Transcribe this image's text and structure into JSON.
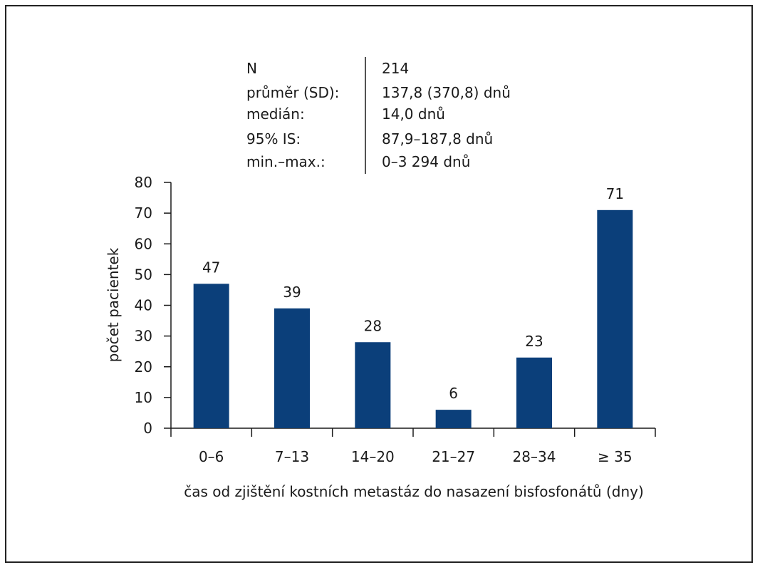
{
  "stats": {
    "rows": [
      {
        "label": "N",
        "value": "214"
      },
      {
        "label": "průměr (SD):",
        "value": "137,8 (370,8) dnů"
      },
      {
        "label": "medián:",
        "value": "14,0 dnů"
      },
      {
        "label": "95% IS:",
        "value": "87,9–187,8 dnů"
      },
      {
        "label": "min.–max.:",
        "value": "0–3 294 dnů"
      }
    ]
  },
  "chart_data": {
    "type": "bar",
    "categories": [
      "0–6",
      "7–13",
      "14–20",
      "21–27",
      "28–34",
      "≥ 35"
    ],
    "values": [
      47,
      39,
      28,
      6,
      23,
      71
    ],
    "data_labels": [
      "47",
      "39",
      "28",
      "6",
      "23",
      "71"
    ],
    "xlabel": "čas od zjištění kostních metastáz do nasazení bisfosfonátů (dny)",
    "ylabel": "počet pacientek",
    "ylim": [
      0,
      80
    ],
    "yticks": [
      "0",
      "10",
      "20",
      "30",
      "40",
      "50",
      "60",
      "70",
      "80"
    ],
    "grid": false,
    "bar_color": "#0b3f7a"
  }
}
